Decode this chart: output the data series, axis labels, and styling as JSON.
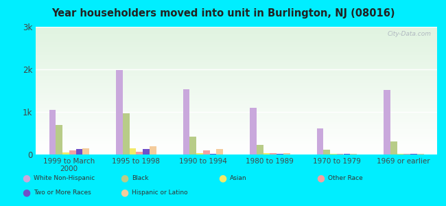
{
  "title": "Year householders moved into unit in Burlington, NJ (08016)",
  "categories": [
    "1999 to March\n2000",
    "1995 to 1998",
    "1990 to 1994",
    "1980 to 1989",
    "1970 to 1979",
    "1969 or earlier"
  ],
  "series": {
    "White Non-Hispanic": [
      1050,
      1980,
      1530,
      1100,
      620,
      1510
    ],
    "Black": [
      700,
      960,
      420,
      230,
      120,
      310
    ],
    "Asian": [
      55,
      150,
      35,
      30,
      10,
      10
    ],
    "Other Race": [
      100,
      60,
      90,
      40,
      10,
      10
    ],
    "Two or More Races": [
      130,
      130,
      20,
      10,
      10,
      10
    ],
    "Hispanic or Latino": [
      140,
      190,
      130,
      40,
      10,
      10
    ]
  },
  "colors": {
    "White Non-Hispanic": "#c9a8dc",
    "Black": "#b8cc88",
    "Asian": "#f2ea68",
    "Other Race": "#f4a0a0",
    "Two or More Races": "#7050c8",
    "Hispanic or Latino": "#f4cc9c"
  },
  "ylim": [
    0,
    3000
  ],
  "yticks": [
    0,
    1000,
    2000,
    3000
  ],
  "ytick_labels": [
    "0",
    "1k",
    "2k",
    "3k"
  ],
  "bg_outer": "#00eeff",
  "bg_plot_top": "#e0f0e8",
  "bg_plot_bottom": "#f8fff8",
  "watermark": "City-Data.com",
  "bar_width": 0.1,
  "legend_row1": [
    "White Non-Hispanic",
    "Black",
    "Asian",
    "Other Race"
  ],
  "legend_row2": [
    "Two or More Races",
    "Hispanic or Latino"
  ]
}
